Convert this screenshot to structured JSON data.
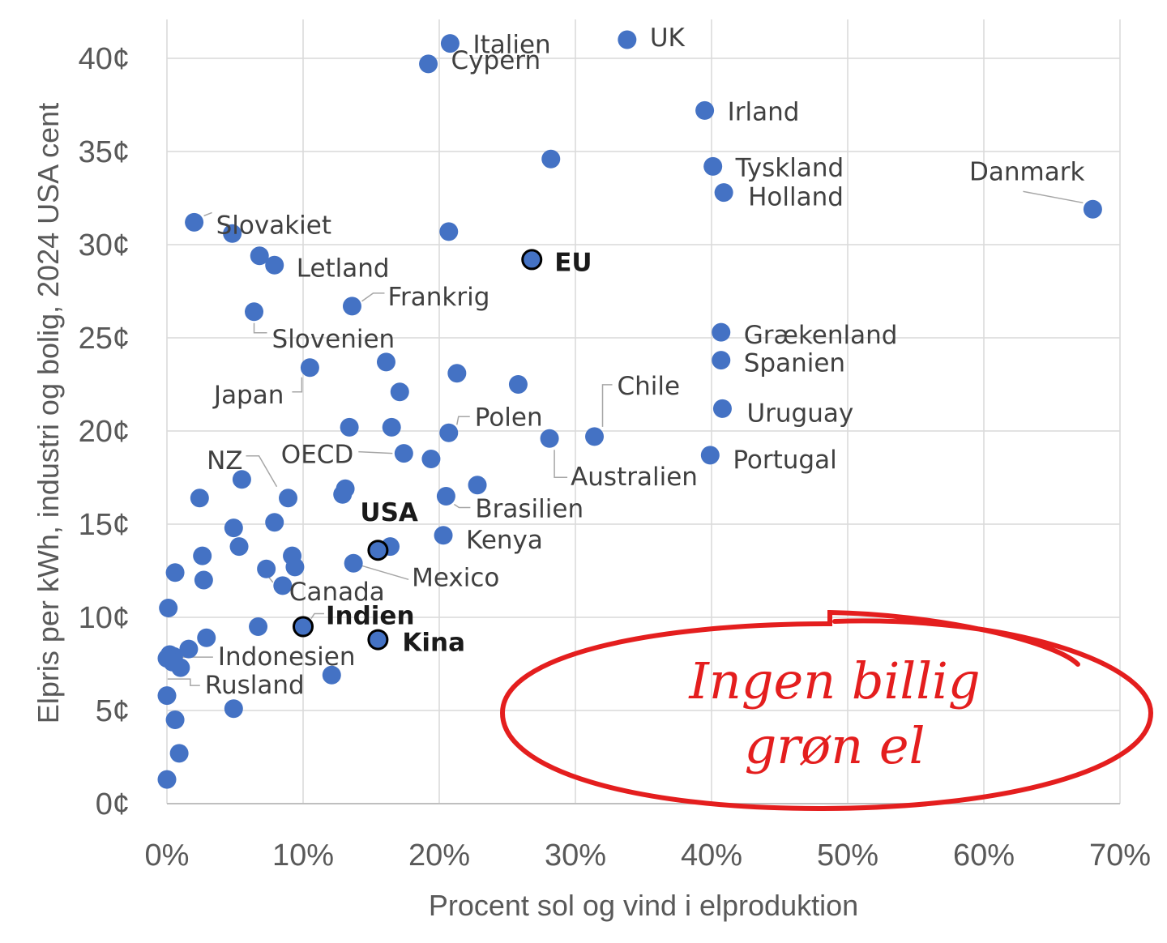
{
  "chart_data": {
    "type": "scatter",
    "title": "",
    "xlabel": "Procent sol og vind i elproduktion",
    "ylabel": "Elpris per kWh, industri og bolig, 2024 USA cent",
    "xlim": [
      0,
      70
    ],
    "ylim": [
      0,
      42
    ],
    "x_ticks": [
      0,
      10,
      20,
      30,
      40,
      50,
      60,
      70
    ],
    "x_tick_labels": [
      "0%",
      "10%",
      "20%",
      "30%",
      "40%",
      "50%",
      "60%",
      "70%"
    ],
    "y_ticks": [
      0,
      5,
      10,
      15,
      20,
      25,
      30,
      35,
      40
    ],
    "y_tick_labels": [
      "0¢",
      "5¢",
      "10¢",
      "15¢",
      "20¢",
      "25¢",
      "30¢",
      "35¢",
      "40¢"
    ],
    "grid": true,
    "legend": "none",
    "point_color": "#4472c4",
    "highlight_color": "#4472c4",
    "highlight_stroke": "#000000",
    "points": [
      {
        "x": 20.8,
        "y": 40.8,
        "label": "Italien"
      },
      {
        "x": 19.2,
        "y": 39.7,
        "label": "Cypern"
      },
      {
        "x": 33.8,
        "y": 41.0,
        "label": "UK"
      },
      {
        "x": 39.5,
        "y": 37.2,
        "label": "Irland"
      },
      {
        "x": 28.2,
        "y": 34.6,
        "label": ""
      },
      {
        "x": 40.1,
        "y": 34.2,
        "label": "Tyskland"
      },
      {
        "x": 40.9,
        "y": 32.8,
        "label": "Holland"
      },
      {
        "x": 68.0,
        "y": 31.9,
        "label": "Danmark"
      },
      {
        "x": 2.0,
        "y": 31.2,
        "label": "Slovakiet"
      },
      {
        "x": 4.8,
        "y": 30.6,
        "label": ""
      },
      {
        "x": 20.7,
        "y": 30.7,
        "label": ""
      },
      {
        "x": 26.8,
        "y": 29.2,
        "label": "EU",
        "highlight": true
      },
      {
        "x": 6.8,
        "y": 29.4,
        "label": ""
      },
      {
        "x": 7.9,
        "y": 28.9,
        "label": "Letland"
      },
      {
        "x": 13.6,
        "y": 26.7,
        "label": "Frankrig"
      },
      {
        "x": 6.4,
        "y": 26.4,
        "label": "Slovenien"
      },
      {
        "x": 40.7,
        "y": 25.3,
        "label": "Grækenland"
      },
      {
        "x": 40.7,
        "y": 23.8,
        "label": "Spanien"
      },
      {
        "x": 16.1,
        "y": 23.7,
        "label": ""
      },
      {
        "x": 10.5,
        "y": 23.4,
        "label": "Japan"
      },
      {
        "x": 21.3,
        "y": 23.1,
        "label": ""
      },
      {
        "x": 25.8,
        "y": 22.5,
        "label": ""
      },
      {
        "x": 17.1,
        "y": 22.1,
        "label": ""
      },
      {
        "x": 40.8,
        "y": 21.2,
        "label": "Uruguay"
      },
      {
        "x": 13.4,
        "y": 20.2,
        "label": ""
      },
      {
        "x": 16.5,
        "y": 20.2,
        "label": ""
      },
      {
        "x": 20.7,
        "y": 19.9,
        "label": "Polen"
      },
      {
        "x": 31.4,
        "y": 19.7,
        "label": "Chile"
      },
      {
        "x": 28.1,
        "y": 19.6,
        "label": "Australien"
      },
      {
        "x": 17.4,
        "y": 18.8,
        "label": "OECD"
      },
      {
        "x": 19.4,
        "y": 18.5,
        "label": ""
      },
      {
        "x": 39.9,
        "y": 18.7,
        "label": "Portugal"
      },
      {
        "x": 5.5,
        "y": 17.4,
        "label": ""
      },
      {
        "x": 22.8,
        "y": 17.1,
        "label": ""
      },
      {
        "x": 13.1,
        "y": 16.9,
        "label": ""
      },
      {
        "x": 12.9,
        "y": 16.6,
        "label": ""
      },
      {
        "x": 20.5,
        "y": 16.5,
        "label": "Brasilien"
      },
      {
        "x": 8.9,
        "y": 16.4,
        "label": "NZ"
      },
      {
        "x": 2.4,
        "y": 16.4,
        "label": ""
      },
      {
        "x": 7.9,
        "y": 15.1,
        "label": ""
      },
      {
        "x": 4.9,
        "y": 14.8,
        "label": ""
      },
      {
        "x": 20.3,
        "y": 14.4,
        "label": "Kenya"
      },
      {
        "x": 5.3,
        "y": 13.8,
        "label": ""
      },
      {
        "x": 16.4,
        "y": 13.8,
        "label": ""
      },
      {
        "x": 15.5,
        "y": 13.6,
        "label": "USA",
        "highlight": true
      },
      {
        "x": 2.6,
        "y": 13.3,
        "label": ""
      },
      {
        "x": 9.2,
        "y": 13.3,
        "label": ""
      },
      {
        "x": 13.7,
        "y": 12.9,
        "label": "Mexico"
      },
      {
        "x": 9.4,
        "y": 12.7,
        "label": ""
      },
      {
        "x": 7.3,
        "y": 12.6,
        "label": ""
      },
      {
        "x": 0.6,
        "y": 12.4,
        "label": ""
      },
      {
        "x": 2.7,
        "y": 12.0,
        "label": ""
      },
      {
        "x": 8.5,
        "y": 11.7,
        "label": "Canada"
      },
      {
        "x": 0.1,
        "y": 10.5,
        "label": ""
      },
      {
        "x": 6.7,
        "y": 9.5,
        "label": ""
      },
      {
        "x": 10.0,
        "y": 9.5,
        "label": "Indien",
        "highlight": true
      },
      {
        "x": 2.9,
        "y": 8.9,
        "label": ""
      },
      {
        "x": 15.5,
        "y": 8.8,
        "label": "Kina",
        "highlight": true
      },
      {
        "x": 1.6,
        "y": 8.3,
        "label": "Indonesien"
      },
      {
        "x": 0.2,
        "y": 8.0,
        "label": ""
      },
      {
        "x": 0.5,
        "y": 7.9,
        "label": ""
      },
      {
        "x": 0.0,
        "y": 7.8,
        "label": ""
      },
      {
        "x": 0.4,
        "y": 7.6,
        "label": ""
      },
      {
        "x": 1.0,
        "y": 7.3,
        "label": "Rusland"
      },
      {
        "x": 12.1,
        "y": 6.9,
        "label": ""
      },
      {
        "x": 0.0,
        "y": 5.8,
        "label": ""
      },
      {
        "x": 4.9,
        "y": 5.1,
        "label": ""
      },
      {
        "x": 0.6,
        "y": 4.5,
        "label": ""
      },
      {
        "x": 0.9,
        "y": 2.7,
        "label": ""
      },
      {
        "x": 0.0,
        "y": 1.3,
        "label": ""
      }
    ],
    "annotation": {
      "text_line1": "Ingen billig",
      "text_line2": "grøn el",
      "color": "#e41e1e"
    }
  }
}
